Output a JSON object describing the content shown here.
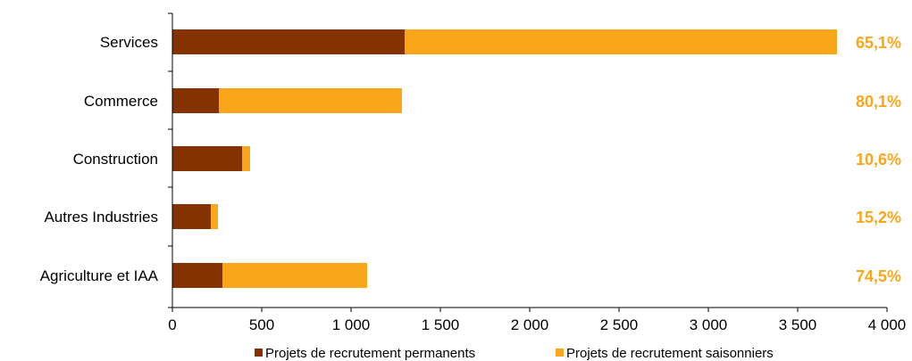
{
  "chart_data": {
    "type": "bar",
    "orientation": "horizontal",
    "stacked": true,
    "categories": [
      "Services",
      "Commerce",
      "Construction",
      "Autres Industries",
      "Agriculture et IAA"
    ],
    "series": [
      {
        "name": "Projets de recrutement permanents",
        "color": "#833200",
        "values": [
          1300,
          260,
          390,
          215,
          280
        ]
      },
      {
        "name": "Projets de recrutement saisonniers",
        "color": "#FAA61A",
        "values": [
          2420,
          1025,
          45,
          40,
          810
        ]
      }
    ],
    "annotations": [
      "65,1%",
      "80,1%",
      "10,6%",
      "15,2%",
      "74,5%"
    ],
    "annotation_color": "#FAA61A",
    "xlim": [
      0,
      4000
    ],
    "xticks": [
      0,
      500,
      1000,
      1500,
      2000,
      2500,
      3000,
      3500,
      4000
    ],
    "xtick_labels": [
      "0",
      "500",
      "1 000",
      "1 500",
      "2 000",
      "2 500",
      "3 000",
      "3 500",
      "4 000"
    ],
    "grid": false,
    "legend_position": "bottom"
  }
}
